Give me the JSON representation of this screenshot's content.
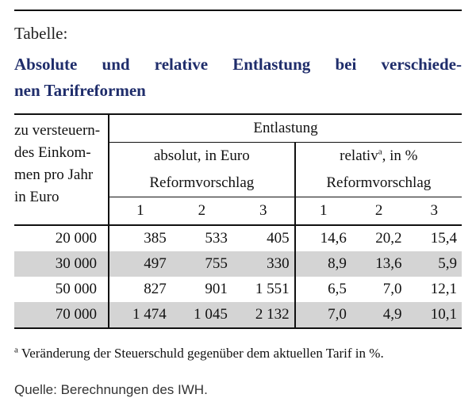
{
  "label": "Tabelle:",
  "title": {
    "line1": "Absolute und relative Entlastung bei verschiede-",
    "line2": "nen Tarifreformen"
  },
  "table": {
    "left_header": [
      "zu versteuern-",
      "des Einkom-",
      "men pro Jahr",
      "in Euro"
    ],
    "top_header": "Entlastung",
    "group_absolute": "absolut, in Euro",
    "group_relative_prefix": "relativ",
    "group_relative_sup": "a",
    "group_relative_suffix": ", in %",
    "subheader": "Reformvorschlag",
    "col_numbers": [
      "1",
      "2",
      "3",
      "1",
      "2",
      "3"
    ],
    "rows": [
      {
        "income": "20 000",
        "abs": [
          "385",
          "533",
          "405"
        ],
        "rel": [
          "14,6",
          "20,2",
          "15,4"
        ],
        "shaded": false
      },
      {
        "income": "30 000",
        "abs": [
          "497",
          "755",
          "330"
        ],
        "rel": [
          "8,9",
          "13,6",
          "5,9"
        ],
        "shaded": true
      },
      {
        "income": "50 000",
        "abs": [
          "827",
          "901",
          "1 551"
        ],
        "rel": [
          "6,5",
          "7,0",
          "12,1"
        ],
        "shaded": false
      },
      {
        "income": "70 000",
        "abs": [
          "1 474",
          "1 045",
          "2 132"
        ],
        "rel": [
          "7,0",
          "4,9",
          "10,1"
        ],
        "shaded": true
      }
    ]
  },
  "footnote_mark": "a",
  "footnote": " Veränderung der Steuerschuld gegenüber dem aktuellen Tarif in %.",
  "source": "Quelle: Berechnungen des IWH."
}
